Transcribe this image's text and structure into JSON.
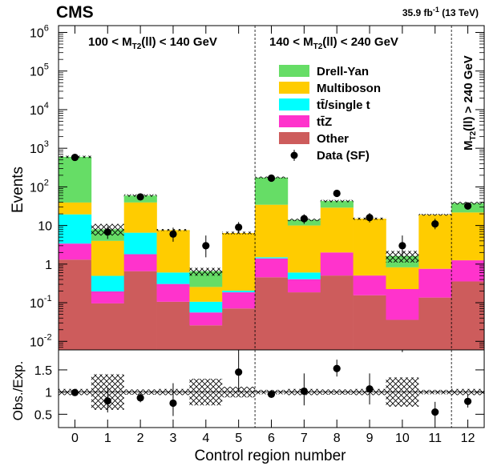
{
  "chart_data": {
    "type": "bar",
    "stacked": true,
    "title": "CMS",
    "lumi_label": "35.9 fb",
    "lumi_exp": "-1",
    "lumi_energy": " (13 TeV)",
    "xlabel": "Control region number",
    "ylabel_top": "Events",
    "ylabel_ratio": "Obs./Exp.",
    "y_scale_top": "log",
    "ylim_top": [
      0.006,
      1500000
    ],
    "ylim_ratio": [
      0.2,
      1.95
    ],
    "categories": [
      "0",
      "1",
      "2",
      "3",
      "4",
      "5",
      "6",
      "7",
      "8",
      "9",
      "10",
      "11",
      "12"
    ],
    "top_tick_labels": [
      {
        "base": "10",
        "exp": "-2",
        "value": 0.01
      },
      {
        "base": "10",
        "exp": "-1",
        "value": 0.1
      },
      {
        "base": "1",
        "exp": "",
        "value": 1
      },
      {
        "base": "10",
        "exp": "",
        "value": 10
      },
      {
        "base": "10",
        "exp": "2",
        "value": 100
      },
      {
        "base": "10",
        "exp": "3",
        "value": 1000
      },
      {
        "base": "10",
        "exp": "4",
        "value": 10000
      },
      {
        "base": "10",
        "exp": "5",
        "value": 100000
      },
      {
        "base": "10",
        "exp": "6",
        "value": 1000000
      }
    ],
    "ratio_tick_labels": [
      {
        "label": "0.5",
        "value": 0.5
      },
      {
        "label": "1",
        "value": 1
      },
      {
        "label": "1.5",
        "value": 1.5
      }
    ],
    "regions": [
      {
        "pre": "100 < M",
        "sub": "T2",
        "post": "(ll) < 140 GeV",
        "from": 0,
        "to": 5
      },
      {
        "pre": "140 < M",
        "sub": "T2",
        "post": "(ll) < 240 GeV",
        "from": 6,
        "to": 11
      },
      {
        "pre": "M",
        "sub": "T2",
        "post": "(ll) > 240 GeV",
        "from": 12,
        "to": 12
      }
    ],
    "series": [
      {
        "name": "Other",
        "color": "#cd5c5c",
        "values": [
          1.3,
          0.09,
          0.65,
          0.1,
          0.02,
          0.065,
          0.45,
          0.18,
          0.5,
          0.15,
          0.03,
          0.13,
          0.35
        ]
      },
      {
        "name": "tt̄Z",
        "color": "#ff33cc",
        "values": [
          2.1,
          0.1,
          1.15,
          0.2,
          0.03,
          0.115,
          0.95,
          0.22,
          1.5,
          0.35,
          0.19,
          0.62,
          0.9
        ]
      },
      {
        "name": "tt̄/single t",
        "color": "#00ffff",
        "values": [
          16,
          0.3,
          4.7,
          0.3,
          0.05,
          0.02,
          0.1,
          0.2,
          0,
          0,
          0,
          0,
          0
        ]
      },
      {
        "name": "Multiboson",
        "color": "#ffcc00",
        "values": [
          20,
          3.5,
          33,
          7,
          0.15,
          6.2,
          33,
          9.4,
          27,
          14.5,
          0.6,
          18.2,
          20.5
        ]
      },
      {
        "name": "Drell-Yan",
        "color": "#66dd66",
        "values": [
          560,
          4,
          20,
          0,
          0.4,
          0,
          140,
          4,
          14,
          0,
          0.8,
          0,
          16
        ]
      }
    ],
    "stack_totals": [
      600,
      8,
      60,
      7.6,
      0.65,
      6.4,
      175,
      14,
      43,
      15,
      1.6,
      19,
      38
    ],
    "uncertainty_band": [
      {
        "lo": 560,
        "hi": 640
      },
      {
        "lo": 5.5,
        "hi": 11
      },
      {
        "lo": 56,
        "hi": 64
      },
      {
        "lo": 7.2,
        "hi": 8.1
      },
      {
        "lo": 0.5,
        "hi": 0.8
      },
      {
        "lo": 5.9,
        "hi": 6.9
      },
      {
        "lo": 165,
        "hi": 185
      },
      {
        "lo": 13,
        "hi": 15
      },
      {
        "lo": 40,
        "hi": 46
      },
      {
        "lo": 14,
        "hi": 16
      },
      {
        "lo": 1.1,
        "hi": 2.2
      },
      {
        "lo": 18,
        "hi": 20
      },
      {
        "lo": 35,
        "hi": 41
      }
    ],
    "data_name": "Data (SF)",
    "data": [
      {
        "y": 580,
        "lo": 555,
        "hi": 605
      },
      {
        "y": 6.8,
        "lo": 4.5,
        "hi": 9.5
      },
      {
        "y": 55,
        "lo": 48,
        "hi": 63
      },
      {
        "y": 6,
        "lo": 3.8,
        "hi": 8.8
      },
      {
        "y": 3,
        "lo": 1.5,
        "hi": 5.5
      },
      {
        "y": 9,
        "lo": 6.3,
        "hi": 12.3
      },
      {
        "y": 168,
        "lo": 155,
        "hi": 182
      },
      {
        "y": 15,
        "lo": 11,
        "hi": 19.5
      },
      {
        "y": 68,
        "lo": 60,
        "hi": 77
      },
      {
        "y": 16,
        "lo": 12,
        "hi": 21
      },
      {
        "y": 3,
        "lo": 1.5,
        "hi": 5.5
      },
      {
        "y": 11,
        "lo": 8,
        "hi": 15
      },
      {
        "y": 32,
        "lo": 26.5,
        "hi": 38
      }
    ],
    "ratio": [
      {
        "y": 0.99,
        "lo": 0.93,
        "hi": 1.05
      },
      {
        "y": 0.8,
        "lo": 0.54,
        "hi": 1.1
      },
      {
        "y": 0.87,
        "lo": 0.77,
        "hi": 0.97
      },
      {
        "y": 0.75,
        "lo": 0.46,
        "hi": 1.2
      },
      {
        "y": 0,
        "lo": 0,
        "hi": 0
      },
      {
        "y": 1.45,
        "lo": 1.0,
        "hi": 1.95
      },
      {
        "y": 0.95,
        "lo": 0.88,
        "hi": 1.02
      },
      {
        "y": 1.02,
        "lo": 0.7,
        "hi": 1.42
      },
      {
        "y": 1.53,
        "lo": 1.35,
        "hi": 1.73
      },
      {
        "y": 1.07,
        "lo": 0.72,
        "hi": 1.42
      },
      {
        "y": 0,
        "lo": 0,
        "hi": 0
      },
      {
        "y": 0.55,
        "lo": 0.38,
        "hi": 0.78
      },
      {
        "y": 0.79,
        "lo": 0.65,
        "hi": 0.95
      }
    ],
    "ratio_band": [
      {
        "lo": 0.93,
        "hi": 1.07
      },
      {
        "lo": 0.6,
        "hi": 1.4
      },
      {
        "lo": 0.94,
        "hi": 1.06
      },
      {
        "lo": 0.93,
        "hi": 1.07
      },
      {
        "lo": 0.7,
        "hi": 1.3
      },
      {
        "lo": 0.88,
        "hi": 1.12
      },
      {
        "lo": 0.95,
        "hi": 1.05
      },
      {
        "lo": 0.93,
        "hi": 1.07
      },
      {
        "lo": 0.94,
        "hi": 1.06
      },
      {
        "lo": 0.93,
        "hi": 1.07
      },
      {
        "lo": 0.67,
        "hi": 1.33
      },
      {
        "lo": 0.95,
        "hi": 1.05
      },
      {
        "lo": 0.93,
        "hi": 1.07
      }
    ],
    "legend_position": "top-right",
    "grid": false
  }
}
